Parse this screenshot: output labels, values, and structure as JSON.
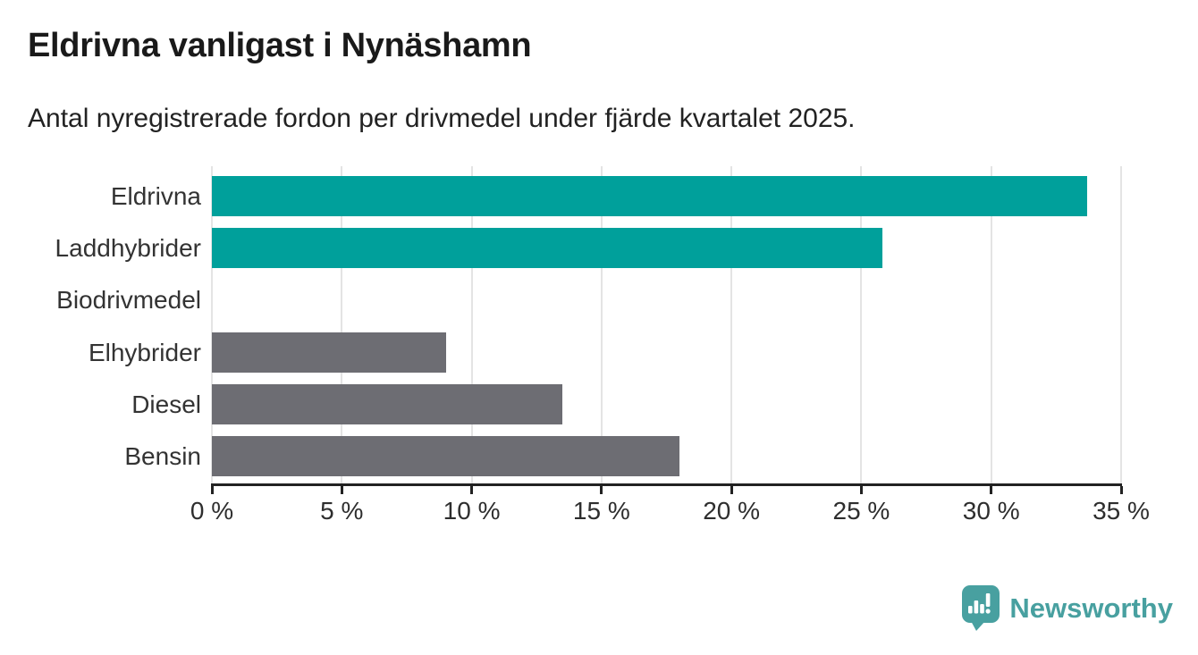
{
  "header": {
    "title": "Eldrivna vanligast i Nynäshamn",
    "subtitle": "Antal nyregistrerade fordon per drivmedel under fjärde kvartalet 2025."
  },
  "chart_data": {
    "type": "bar",
    "orientation": "horizontal",
    "title": "Eldrivna vanligast i Nynäshamn",
    "subtitle": "Antal nyregistrerade fordon per drivmedel under fjärde kvartalet 2025.",
    "categories": [
      "Eldrivna",
      "Laddhybrider",
      "Biodrivmedel",
      "Elhybrider",
      "Diesel",
      "Bensin"
    ],
    "values": [
      33.7,
      25.8,
      0,
      9,
      13.5,
      18
    ],
    "unit": "%",
    "bar_colors": [
      "#00a09b",
      "#00a09b",
      "#00a09b",
      "#6d6d73",
      "#6d6d73",
      "#6d6d73"
    ],
    "xlabel": "",
    "ylabel": "",
    "xlim": [
      0,
      35
    ],
    "x_ticks": [
      0,
      5,
      10,
      15,
      20,
      25,
      30,
      35
    ],
    "x_tick_labels": [
      "0 %",
      "5 %",
      "10 %",
      "15 %",
      "20 %",
      "25 %",
      "30 %",
      "35 %"
    ],
    "grid": true,
    "legend": "none"
  },
  "colors": {
    "accent_teal": "#00a09b",
    "bar_gray": "#6d6d73",
    "gridline": "#e4e4e4",
    "axis": "#222222",
    "title_text": "#1a1a1a",
    "label_text": "#333333",
    "logo_teal": "#48a0a0"
  },
  "footer": {
    "brand": "Newsworthy",
    "logo_icon": "newsworthy-speech-bubble-bar-chart-icon"
  }
}
